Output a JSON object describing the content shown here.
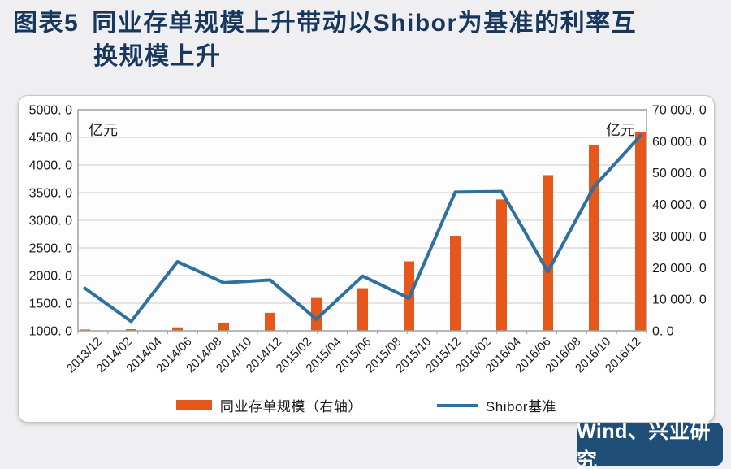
{
  "header": {
    "title_prefix": "图表5",
    "title_line1": "同业存单规模上升带动以Shibor为基准的利率互",
    "title_line2": "换规模上升"
  },
  "footer": {
    "source": "Wind、兴业研究"
  },
  "colors": {
    "title_navy": "#17375D",
    "bar_orange": "#E5571B",
    "line_blue": "#2E709F",
    "badge_bg": "#1F4E79",
    "grid_line": "#CBCBCE",
    "plot_border": "#9FA0A4",
    "panel_bg": "#FFFFFF",
    "page_bg": "#EFEFF1"
  },
  "chart_data": {
    "type": "bar",
    "subtype": "bar+line dual-axis combo",
    "x_tick_labels": [
      "2013/12",
      "2014/02",
      "2014/04",
      "2014/06",
      "2014/08",
      "2014/10",
      "2014/12",
      "2015/02",
      "2015/04",
      "2015/06",
      "2015/08",
      "2015/10",
      "2015/12",
      "2016/02",
      "2016/04",
      "2016/06",
      "2016/08",
      "2016/10",
      "2016/12"
    ],
    "note": "13 evenly spaced data points (roughly quarterly from 2013/12 to 2016/12); printed x tick labels are bi-monthly",
    "series": [
      {
        "name": "同业存单规模（右轴）",
        "type": "bar",
        "axis": "right",
        "color": "#E5571B",
        "values": [
          400,
          500,
          1100,
          2600,
          5700,
          10400,
          13500,
          22000,
          30100,
          41600,
          49300,
          58900,
          63000
        ]
      },
      {
        "name": "Shibor基准",
        "type": "line",
        "axis": "left",
        "color": "#2E709F",
        "values": [
          1770,
          1170,
          2250,
          1870,
          1920,
          1210,
          1990,
          1590,
          3510,
          3520,
          2070,
          3610,
          4530
        ]
      }
    ],
    "left_axis": {
      "unit": "亿元",
      "min": 1000,
      "max": 5000,
      "step": 500,
      "tick_labels": [
        "5000. 0",
        "4500. 0",
        "4000. 0",
        "3500. 0",
        "3000. 0",
        "2500. 0",
        "2000. 0",
        "1500. 0",
        "1000. 0"
      ]
    },
    "right_axis": {
      "unit": "亿元",
      "min": 0,
      "max": 70000,
      "step": 10000,
      "tick_labels": [
        "70 000. 0",
        "60 000. 0",
        "50 000. 0",
        "40 000. 0",
        "30 000. 0",
        "20 000. 0",
        "10 000. 0",
        "0. 0"
      ]
    },
    "grid": "horizontal gridlines at every 500 of left axis",
    "legend_position": "bottom"
  }
}
